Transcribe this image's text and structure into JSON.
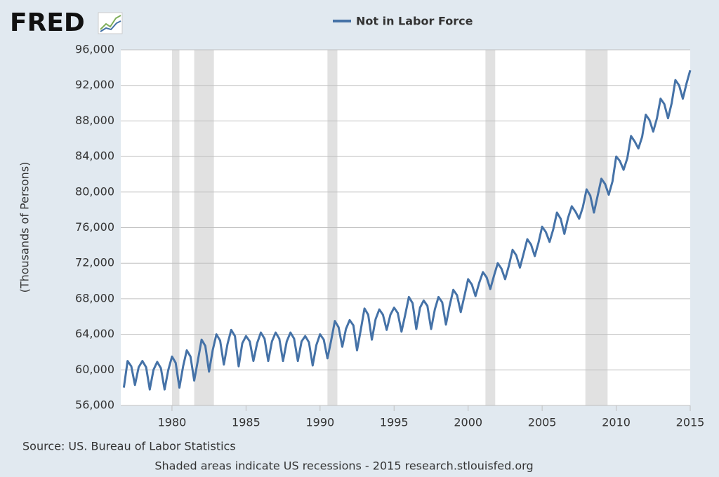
{
  "logo": "FRED",
  "chart_data": {
    "type": "line",
    "y_label": "(Thousands of Persons)",
    "source": "Source: US. Bureau of Labor Statistics",
    "note": "Shaded areas indicate US recessions - 2015 research.stlouisfed.org",
    "x": [
      1976.75,
      1977,
      1977.25,
      1977.5,
      1977.75,
      1978,
      1978.25,
      1978.5,
      1978.75,
      1979,
      1979.25,
      1979.5,
      1979.75,
      1980,
      1980.25,
      1980.5,
      1980.75,
      1981,
      1981.25,
      1981.5,
      1981.75,
      1982,
      1982.25,
      1982.5,
      1982.75,
      1983,
      1983.25,
      1983.5,
      1983.75,
      1984,
      1984.25,
      1984.5,
      1984.75,
      1985,
      1985.25,
      1985.5,
      1985.75,
      1986,
      1986.25,
      1986.5,
      1986.75,
      1987,
      1987.25,
      1987.5,
      1987.75,
      1988,
      1988.25,
      1988.5,
      1988.75,
      1989,
      1989.25,
      1989.5,
      1989.75,
      1990,
      1990.25,
      1990.5,
      1990.75,
      1991,
      1991.25,
      1991.5,
      1991.75,
      1992,
      1992.25,
      1992.5,
      1992.75,
      1993,
      1993.25,
      1993.5,
      1993.75,
      1994,
      1994.25,
      1994.5,
      1994.75,
      1995,
      1995.25,
      1995.5,
      1995.75,
      1996,
      1996.25,
      1996.5,
      1996.75,
      1997,
      1997.25,
      1997.5,
      1997.75,
      1998,
      1998.25,
      1998.5,
      1998.75,
      1999,
      1999.25,
      1999.5,
      1999.75,
      2000,
      2000.25,
      2000.5,
      2000.75,
      2001,
      2001.25,
      2001.5,
      2001.75,
      2002,
      2002.25,
      2002.5,
      2002.75,
      2003,
      2003.25,
      2003.5,
      2003.75,
      2004,
      2004.25,
      2004.5,
      2004.75,
      2005,
      2005.25,
      2005.5,
      2005.75,
      2006,
      2006.25,
      2006.5,
      2006.75,
      2007,
      2007.25,
      2007.5,
      2007.75,
      2008,
      2008.25,
      2008.5,
      2008.75,
      2009,
      2009.25,
      2009.5,
      2009.75,
      2010,
      2010.25,
      2010.5,
      2010.75,
      2011,
      2011.25,
      2011.5,
      2011.75,
      2012,
      2012.25,
      2012.5,
      2012.75,
      2013,
      2013.25,
      2013.5,
      2013.75,
      2014,
      2014.25,
      2014.5,
      2014.75,
      2015
    ],
    "series": [
      {
        "name": "Not in Labor Force",
        "color": "#4572a7",
        "values": [
          58000,
          61000,
          60400,
          58300,
          60300,
          61000,
          60300,
          57800,
          60000,
          60900,
          60200,
          57800,
          60000,
          61500,
          60800,
          58000,
          60400,
          62200,
          61500,
          58800,
          61100,
          63400,
          62700,
          59800,
          62200,
          64000,
          63300,
          60600,
          62900,
          64500,
          63800,
          60400,
          63000,
          63800,
          63200,
          61000,
          63000,
          64200,
          63500,
          61000,
          63200,
          64200,
          63500,
          61000,
          63200,
          64200,
          63500,
          61000,
          63200,
          63800,
          63100,
          60500,
          62800,
          64000,
          63400,
          61300,
          63300,
          65500,
          64800,
          62600,
          64600,
          65600,
          65000,
          62200,
          64500,
          66900,
          66200,
          63400,
          65700,
          66800,
          66200,
          64500,
          66200,
          67000,
          66400,
          64300,
          66200,
          68200,
          67500,
          64600,
          67000,
          67800,
          67200,
          64600,
          66800,
          68200,
          67600,
          65100,
          67200,
          69000,
          68400,
          66500,
          68300,
          70200,
          69600,
          68300,
          69800,
          71000,
          70400,
          69100,
          70600,
          72000,
          71400,
          70200,
          71700,
          73500,
          72900,
          71500,
          73100,
          74700,
          74100,
          72800,
          74300,
          76100,
          75500,
          74400,
          75800,
          77700,
          77000,
          75300,
          77100,
          78400,
          77800,
          77000,
          78300,
          80300,
          79600,
          77700,
          79600,
          81500,
          80900,
          79700,
          81200,
          84000,
          83500,
          82500,
          83800,
          86300,
          85700,
          84900,
          86200,
          88700,
          88100,
          86800,
          88300,
          90500,
          89900,
          88300,
          90000,
          92600,
          92000,
          90500,
          92200,
          93700
        ]
      }
    ],
    "recessions": [
      {
        "start": 1980.0,
        "end": 1980.5
      },
      {
        "start": 1981.5,
        "end": 1982.83
      },
      {
        "start": 1990.5,
        "end": 1991.17
      },
      {
        "start": 2001.17,
        "end": 2001.83
      },
      {
        "start": 2007.92,
        "end": 2009.42
      }
    ],
    "xlim": [
      1976.54,
      2015.0
    ],
    "ylim": [
      56000,
      96000
    ],
    "xticks": [
      1980,
      1985,
      1990,
      1995,
      2000,
      2005,
      2010,
      2015
    ],
    "yticks": [
      {
        "value": 56000,
        "label": "56,000"
      },
      {
        "value": 60000,
        "label": "60,000"
      },
      {
        "value": 64000,
        "label": "64,000"
      },
      {
        "value": 68000,
        "label": "68,000"
      },
      {
        "value": 72000,
        "label": "72,000"
      },
      {
        "value": 76000,
        "label": "76,000"
      },
      {
        "value": 80000,
        "label": "80,000"
      },
      {
        "value": 84000,
        "label": "84,000"
      },
      {
        "value": 88000,
        "label": "88,000"
      },
      {
        "value": 92000,
        "label": "92,000"
      },
      {
        "value": 96000,
        "label": "96,000"
      }
    ],
    "grid": true
  }
}
